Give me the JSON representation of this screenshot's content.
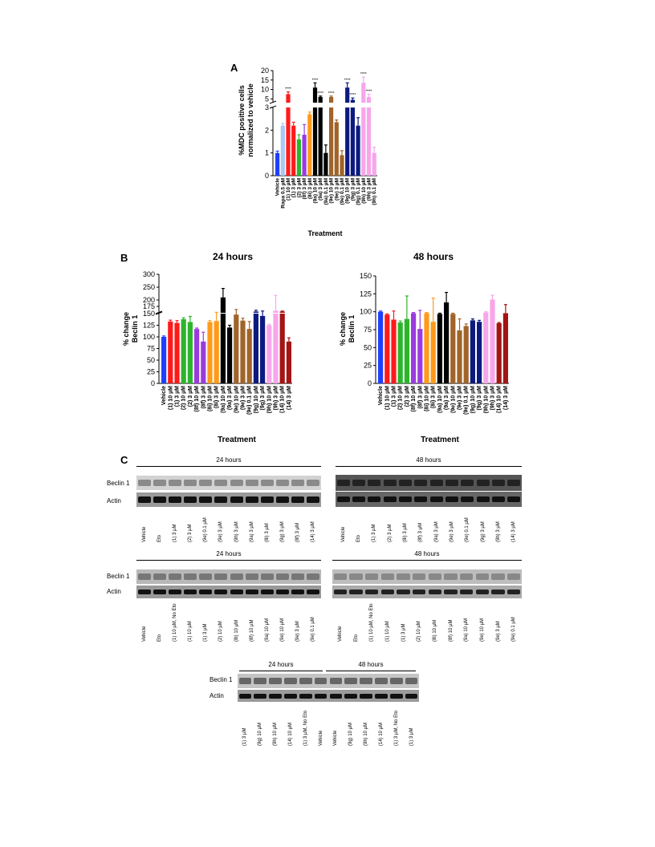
{
  "colors": {
    "blue": "#1f3fff",
    "lightblue": "#a9c9ef",
    "red": "#ff1a1a",
    "green": "#2cb52c",
    "purple": "#9a3be0",
    "orange": "#ff9a1a",
    "black": "#000000",
    "brown": "#a0642a",
    "navy": "#0c1a80",
    "pink": "#f7a6ea",
    "darkred": "#a41414"
  },
  "panelA": {
    "letter": "A",
    "ylabel_line1": "%MDC positive cells",
    "ylabel_line2": "normalized to vehicle",
    "xlabel": "Treatment",
    "chart_data": {
      "type": "bar",
      "ylim_lower": [
        0,
        3
      ],
      "ylim_upper": [
        3,
        20
      ],
      "yticks_lower": [
        "0",
        "1",
        "2",
        "3"
      ],
      "yticks_upper": [
        "5",
        "10",
        "15",
        "20"
      ],
      "categories": [
        "Vehicle",
        "Rapa 0.5 µM",
        "(1) 10 µM",
        "(1) 3 µM",
        "(2) 3 µM",
        "(8f) 3 µM",
        "(8i) 3 µM",
        "(9a) 10 µM",
        "(9a) 3 µM",
        "(9a) 0.1 µM",
        "(9e) 10 µM",
        "(9e) 3 µM",
        "(9e) 0.1 µM",
        "(9g) 10 µM",
        "(9g) 3 µM",
        "(9g) 0.1 µM",
        "(9h) 10 µM",
        "(9h) 3 µM",
        "(9h) 0.1 µM",
        "(14) 10 µM",
        "(14) 3 µM",
        "(14) 0.1 µM"
      ],
      "values": [
        1.0,
        2.2,
        7.5,
        2.2,
        1.6,
        1.8,
        2.7,
        11.0,
        6.0,
        1.0,
        6.0,
        2.35,
        0.9,
        11.0,
        4.5,
        2.2,
        13.5,
        6.0,
        1.0,
        1.45,
        1.05,
        0.75
      ],
      "errors": [
        0.08,
        0.1,
        1.2,
        0.15,
        0.2,
        0.45,
        0.1,
        2.5,
        0.5,
        0.35,
        0.5,
        0.1,
        0.2,
        2.5,
        1.0,
        0.35,
        3.0,
        1.5,
        0.25,
        0.25,
        0.3,
        0.3
      ],
      "colors": [
        "blue",
        "lightblue",
        "red",
        "red",
        "green",
        "purple",
        "orange",
        "black",
        "black",
        "black",
        "brown",
        "brown",
        "brown",
        "navy",
        "navy",
        "navy",
        "pink",
        "pink",
        "pink",
        "darkred",
        "darkred",
        "darkred"
      ],
      "significance": [
        "",
        "",
        "****",
        "",
        "",
        "",
        "",
        "****",
        "****",
        "",
        "****",
        "",
        "",
        "****",
        "****",
        "",
        "****",
        "****",
        "",
        "",
        "",
        ""
      ]
    }
  },
  "panelB": {
    "letter": "B",
    "left": {
      "title": "24 hours",
      "ylabel_line1": "% change",
      "ylabel_line2": "Beclin 1",
      "xlabel": "Treatment",
      "chart_data": {
        "type": "bar",
        "ylim_lower": [
          0,
          150
        ],
        "ylim_upper": [
          150,
          300
        ],
        "yticks_lower": [
          "0",
          "25",
          "50",
          "75",
          "100",
          "125",
          "150"
        ],
        "yticks_upper": [
          "175",
          "200",
          "250",
          "300"
        ],
        "categories": [
          "Vehicle",
          "(1) 10 µM",
          "(1) 3 µM",
          "(2) 10 µM",
          "(2) 3 µM",
          "(8f) 10 µM",
          "(8f) 3 µM",
          "(8i) 10 µM",
          "(8i) 3 µM",
          "(9a) 10 µM",
          "(9a) 3 µM",
          "(9e) 10 µM",
          "(9e) 3 µM",
          "(9e) 0.1 µM",
          "(9g) 10 µM",
          "(9g) 3 µM",
          "(9h) 10 µM",
          "(9h) 3 µM",
          "(14) 10 µM",
          "(14) 3 µM"
        ],
        "values": [
          100,
          133,
          130,
          138,
          132,
          117,
          90,
          132,
          134,
          210,
          120,
          148,
          135,
          117,
          155,
          145,
          125,
          158,
          155,
          90
        ],
        "errors": [
          2,
          3,
          5,
          3,
          12,
          2,
          20,
          3,
          18,
          35,
          5,
          15,
          5,
          16,
          5,
          12,
          2,
          60,
          2,
          8
        ],
        "colors": [
          "blue",
          "red",
          "red",
          "green",
          "green",
          "purple",
          "purple",
          "orange",
          "orange",
          "black",
          "black",
          "brown",
          "brown",
          "brown",
          "navy",
          "navy",
          "pink",
          "pink",
          "darkred",
          "darkred"
        ]
      }
    },
    "right": {
      "title": "48 hours",
      "ylabel_line1": "% change",
      "ylabel_line2": "Beclin 1",
      "xlabel": "Treatment",
      "chart_data": {
        "type": "bar",
        "ylim": [
          0,
          150
        ],
        "yticks": [
          "0",
          "25",
          "50",
          "75",
          "100",
          "125",
          "150"
        ],
        "categories": [
          "Vehicle",
          "(1) 10 µM",
          "(1) 3 µM",
          "(2) 10 µM",
          "(2) 3 µM",
          "(8f) 10 µM",
          "(8f) 3 µM",
          "(8i) 10 µM",
          "(8i) 3 µM",
          "(9a) 10 µM",
          "(9a) 3 µM",
          "(9e) 10 µM",
          "(9e) 3 µM",
          "(9e) 0.1 µM",
          "(9g) 10 µM",
          "(9g) 3 µM",
          "(9h) 10 µM",
          "(9h) 3 µM",
          "(14) 10 µM",
          "(14) 3 µM"
        ],
        "values": [
          100,
          96,
          89,
          85,
          90,
          98,
          76,
          98,
          86,
          97,
          113,
          97,
          74,
          80,
          88,
          86,
          99,
          117,
          84,
          98
        ],
        "errors": [
          1,
          1,
          12,
          2,
          32,
          1,
          26,
          1,
          33,
          1,
          14,
          1,
          16,
          3,
          2,
          2,
          1,
          6,
          1,
          12
        ],
        "colors": [
          "blue",
          "red",
          "red",
          "green",
          "green",
          "purple",
          "purple",
          "orange",
          "orange",
          "black",
          "black",
          "brown",
          "brown",
          "brown",
          "navy",
          "navy",
          "pink",
          "pink",
          "darkred",
          "darkred"
        ]
      }
    }
  },
  "panelC": {
    "letter": "C",
    "row_labels": {
      "beclin": "Beclin 1",
      "actin": "Actin"
    },
    "blot1": {
      "left_title": "24 hours",
      "right_title": "48 hours",
      "left_lanes": [
        "Vehicle",
        "Eto",
        "(1) 3 µM",
        "(2) 3 µM",
        "(9e) 0.1 µM",
        "(9e) 3 µM",
        "(9h) 3 µM",
        "(9a) 3 µM",
        "(8i) 3 µM",
        "(9g) 3 µM",
        "(8f) 3 µM",
        "(14) 3 µM"
      ],
      "right_lanes": [
        "Vehicle",
        "Eto",
        "(1) 3 µM",
        "(2) 3 µM",
        "(8i) 3 µM",
        "(8f) 3 µM",
        "(9a) 3 µM",
        "(9e) 3 µM",
        "(9e) 0.1 µM",
        "(9g) 3 µM",
        "(9h) 3 µM",
        "(14) 3 µM"
      ]
    },
    "blot2": {
      "left_title": "24 hours",
      "right_title": "48 hours",
      "left_lanes": [
        "Vehicle",
        "Eto",
        "(1) 10 µM, No Eto",
        "(1) 10 µM",
        "(1) 3 µM",
        "(2) 10 µM",
        "(8i) 10 µM",
        "(8f) 10 µM",
        "(9a) 10 µM",
        "(9e) 10 µM",
        "(9e) 3 µM",
        "(9e) 0.1 µM"
      ],
      "right_lanes": [
        "Vehicle",
        "Eto",
        "(1) 10 µM, No Eto",
        "(1) 10 µM",
        "(1) 3 µM",
        "(2) 10 µM",
        "(8i) 10 µM",
        "(8f) 10 µM",
        "(9a) 10 µM",
        "(9e) 10 µM",
        "(9e) 3 µM",
        "(9e) 0.1 µM"
      ]
    },
    "blot3": {
      "left_title": "24 hours",
      "right_title": "48 hours",
      "lanes": [
        "(1) 3 µM",
        "(9g) 10 µM",
        "(9h) 10 µM",
        "(14) 10 µM",
        "(1) 3 µM, No Eto",
        "Vehicle",
        "Vehicle",
        "(9g) 10 µM",
        "(9h) 10 µM",
        "(14) 10 µM",
        "(1) 3 µM, No Eto",
        "(1) 3 µM"
      ]
    }
  }
}
